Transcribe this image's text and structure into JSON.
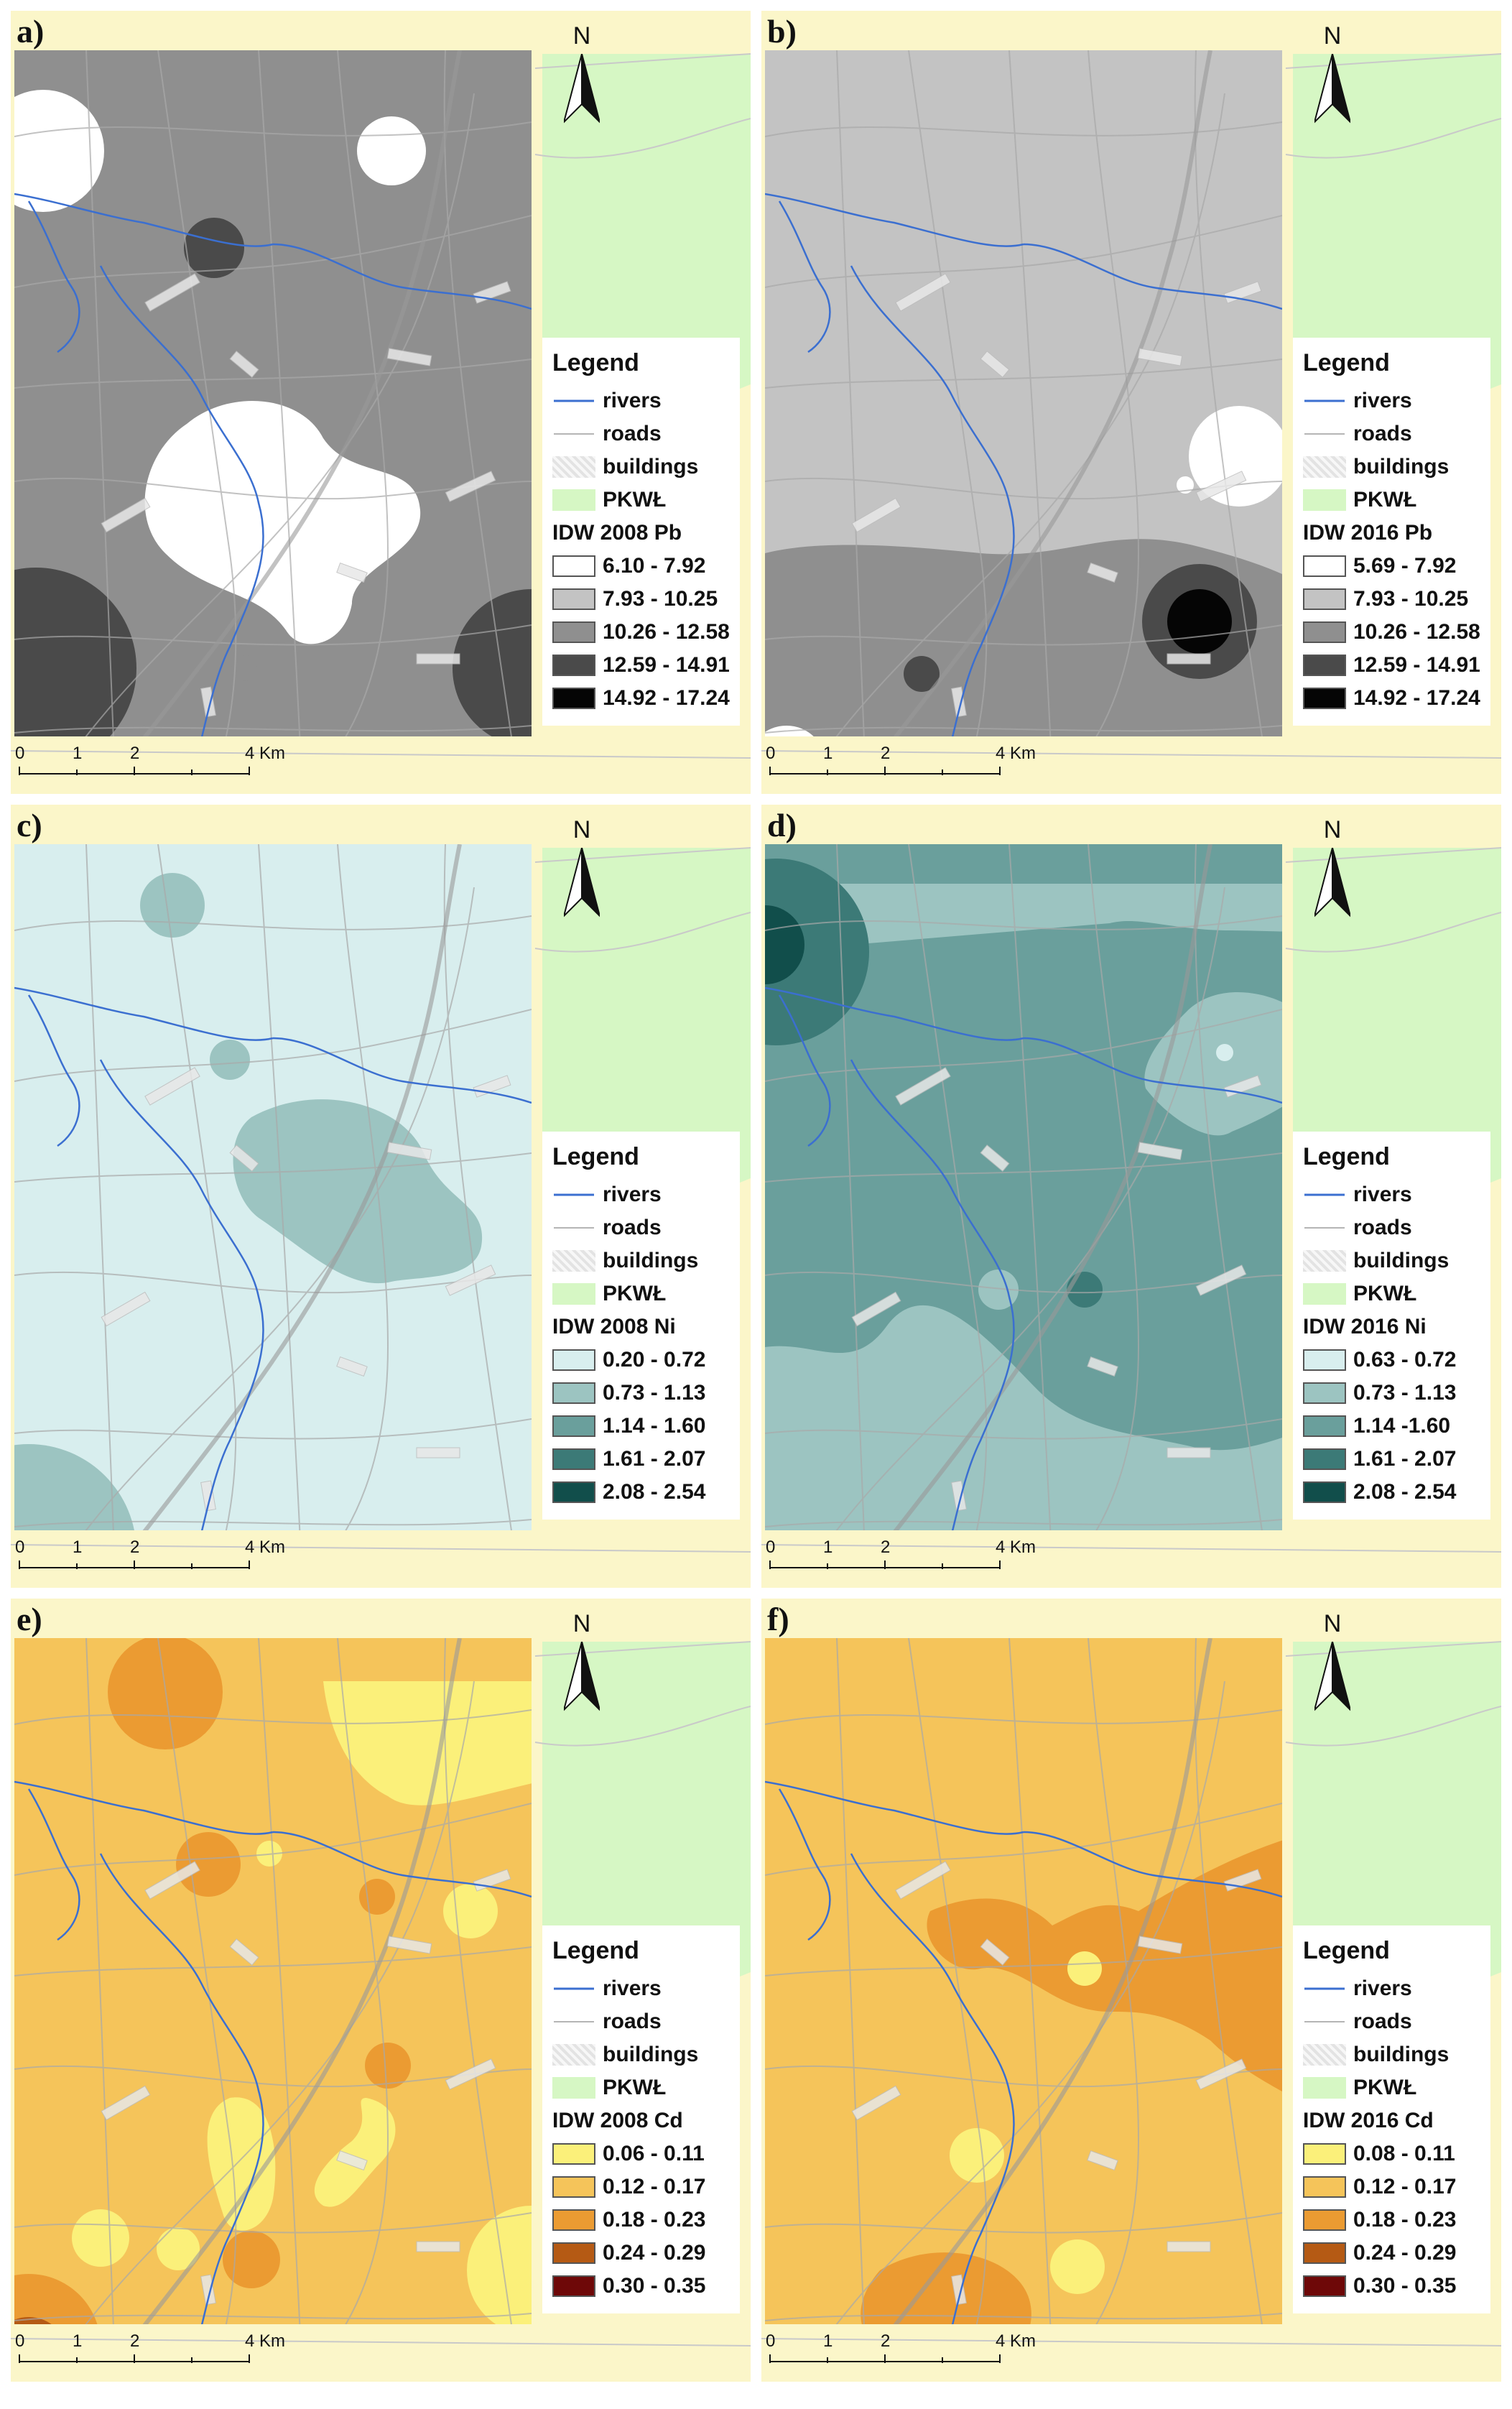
{
  "legend_common": {
    "title": "Legend",
    "rivers": "rivers",
    "roads": "roads",
    "buildings": "buildings",
    "pkwl": "PKWŁ"
  },
  "north_label": "N",
  "scale": {
    "labels": [
      "0",
      "1",
      "2",
      "4 Km"
    ]
  },
  "colors": {
    "background_yellow": "#fbf6c9",
    "pkwl_green": "#d6f7c4",
    "river_blue": "#3b6fd0",
    "road_gray": "#a9a9a9"
  },
  "panels": [
    {
      "label": "a)",
      "layer_title": "IDW 2008 Pb",
      "classes": [
        {
          "range": "6.10 - 7.92",
          "color": "#ffffff"
        },
        {
          "range": "7.93 - 10.25",
          "color": "#c3c3c3"
        },
        {
          "range": "10.26 - 12.58",
          "color": "#8f8f8f"
        },
        {
          "range": "12.59 - 14.91",
          "color": "#4a4a4a"
        },
        {
          "range": "14.92 - 17.24",
          "color": "#050505"
        }
      ],
      "base_class": 2
    },
    {
      "label": "b)",
      "layer_title": "IDW 2016 Pb",
      "classes": [
        {
          "range": "5.69 - 7.92",
          "color": "#ffffff"
        },
        {
          "range": "7.93 - 10.25",
          "color": "#c3c3c3"
        },
        {
          "range": "10.26 - 12.58",
          "color": "#8f8f8f"
        },
        {
          "range": "12.59 - 14.91",
          "color": "#4a4a4a"
        },
        {
          "range": "14.92 - 17.24",
          "color": "#050505"
        }
      ],
      "base_class": 1
    },
    {
      "label": "c)",
      "layer_title": "IDW 2008 Ni",
      "classes": [
        {
          "range": "0.20 - 0.72",
          "color": "#d8eeee"
        },
        {
          "range": "0.73 - 1.13",
          "color": "#9cc4c1"
        },
        {
          "range": "1.14 - 1.60",
          "color": "#6a9f9c"
        },
        {
          "range": "1.61 - 2.07",
          "color": "#3c7a77"
        },
        {
          "range": "2.08 - 2.54",
          "color": "#114e4b"
        }
      ],
      "base_class": 0
    },
    {
      "label": "d)",
      "layer_title": "IDW 2016 Ni",
      "classes": [
        {
          "range": "0.63 - 0.72",
          "color": "#d8eeee"
        },
        {
          "range": "0.73 - 1.13",
          "color": "#9cc4c1"
        },
        {
          "range": "1.14 -1.60",
          "color": "#6a9f9c"
        },
        {
          "range": "1.61 - 2.07",
          "color": "#3c7a77"
        },
        {
          "range": "2.08 - 2.54",
          "color": "#114e4b"
        }
      ],
      "base_class": 2
    },
    {
      "label": "e)",
      "layer_title": "IDW 2008 Cd",
      "classes": [
        {
          "range": "0.06 - 0.11",
          "color": "#fbf07a"
        },
        {
          "range": "0.12 - 0.17",
          "color": "#f5c45a"
        },
        {
          "range": "0.18 - 0.23",
          "color": "#eb9b32"
        },
        {
          "range": "0.24 - 0.29",
          "color": "#b55a14"
        },
        {
          "range": "0.30 - 0.35",
          "color": "#6e0808"
        }
      ],
      "base_class": 1
    },
    {
      "label": "f)",
      "layer_title": "IDW 2016 Cd",
      "classes": [
        {
          "range": "0.08 - 0.11",
          "color": "#fbf07a"
        },
        {
          "range": "0.12 - 0.17",
          "color": "#f5c45a"
        },
        {
          "range": "0.18 - 0.23",
          "color": "#eb9b32"
        },
        {
          "range": "0.24 - 0.29",
          "color": "#b55a14"
        },
        {
          "range": "0.30 - 0.35",
          "color": "#6e0808"
        }
      ],
      "base_class": 1
    }
  ]
}
